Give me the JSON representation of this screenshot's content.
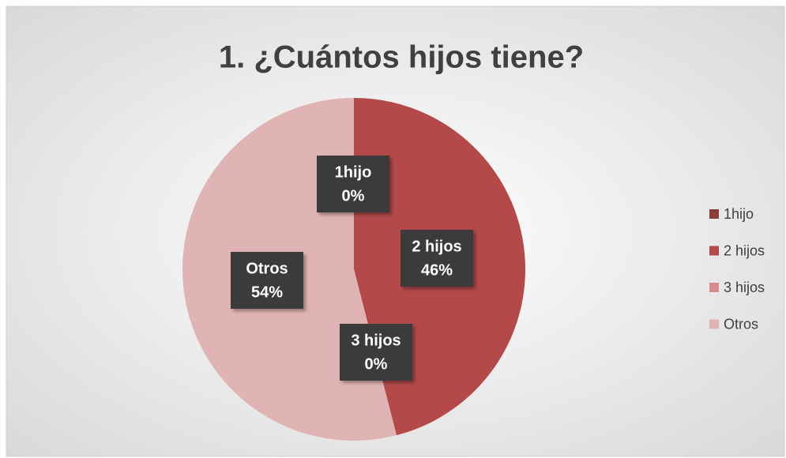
{
  "chart_data": {
    "type": "pie",
    "title": "1. ¿Cuántos hijos tiene?",
    "categories": [
      "1hijo",
      "2 hijos",
      "3 hijos",
      "Otros"
    ],
    "values": [
      0,
      46,
      0,
      54
    ],
    "value_labels": [
      "0%",
      "46%",
      "0%",
      "54%"
    ],
    "colors": [
      "#8e3b3b",
      "#b4494a",
      "#d98c8d",
      "#e0b4b4"
    ],
    "legend": "right"
  }
}
